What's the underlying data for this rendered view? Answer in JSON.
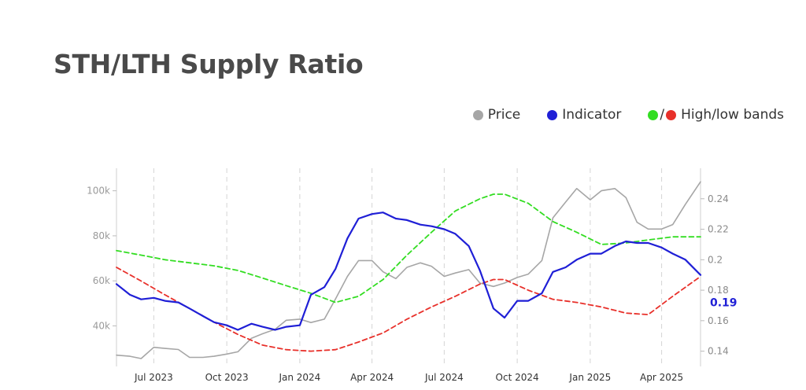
{
  "title": "STH/LTH Supply Ratio",
  "legend": {
    "price": {
      "label": "Price",
      "color": "#a6a6a6"
    },
    "indicator": {
      "label": "Indicator",
      "color": "#1f1fd6"
    },
    "bands": {
      "label": "High/low bands",
      "high_color": "#33dd22",
      "low_color": "#e8302a",
      "separator": "/"
    }
  },
  "last_value_label": "0.19",
  "chart_data": {
    "type": "line",
    "title": "STH/LTH Supply Ratio",
    "x_range": [
      "2023-05-15",
      "2025-05-20"
    ],
    "x_ticks": [
      {
        "date": "2023-07-01",
        "label": "Jul 2023"
      },
      {
        "date": "2023-10-01",
        "label": "Oct 2023"
      },
      {
        "date": "2024-01-01",
        "label": "Jan 2024"
      },
      {
        "date": "2024-04-01",
        "label": "Apr 2024"
      },
      {
        "date": "2024-07-01",
        "label": "Jul 2024"
      },
      {
        "date": "2024-10-01",
        "label": "Oct 2024"
      },
      {
        "date": "2025-01-01",
        "label": "Jan 2025"
      },
      {
        "date": "2025-04-01",
        "label": "Apr 2025"
      }
    ],
    "y_left": {
      "min": 22000,
      "max": 110000,
      "ticks": [
        40000,
        60000,
        80000,
        100000
      ],
      "tick_labels": [
        "40k",
        "60k",
        "80k",
        "100k"
      ]
    },
    "y_right": {
      "min": 0.13,
      "max": 0.26,
      "ticks": [
        0.14,
        0.16,
        0.18,
        0.2,
        0.22,
        0.24
      ],
      "tick_labels": [
        "0.14",
        "0.16",
        "0.18",
        "0.2",
        "0.22",
        "0.24"
      ]
    },
    "grid": "vertical dashed at x ticks",
    "legend_position": "top-right",
    "series": [
      {
        "name": "Price",
        "axis": "left",
        "color": "#a6a6a6",
        "x": [
          "2023-05-15",
          "2023-06-01",
          "2023-06-15",
          "2023-07-01",
          "2023-07-15",
          "2023-08-01",
          "2023-08-15",
          "2023-09-01",
          "2023-09-15",
          "2023-10-01",
          "2023-10-15",
          "2023-11-01",
          "2023-11-15",
          "2023-12-01",
          "2023-12-15",
          "2024-01-01",
          "2024-01-15",
          "2024-02-01",
          "2024-02-15",
          "2024-03-01",
          "2024-03-15",
          "2024-04-01",
          "2024-04-15",
          "2024-05-01",
          "2024-05-15",
          "2024-06-01",
          "2024-06-15",
          "2024-07-01",
          "2024-07-15",
          "2024-08-01",
          "2024-08-15",
          "2024-09-01",
          "2024-09-15",
          "2024-10-01",
          "2024-10-15",
          "2024-11-01",
          "2024-11-15",
          "2024-12-01",
          "2024-12-15",
          "2025-01-01",
          "2025-01-15",
          "2025-02-01",
          "2025-02-15",
          "2025-03-01",
          "2025-03-15",
          "2025-04-01",
          "2025-04-15",
          "2025-05-01",
          "2025-05-20"
        ],
        "y": [
          27000,
          26500,
          25500,
          30500,
          30000,
          29500,
          26000,
          26000,
          26500,
          27500,
          28500,
          34500,
          36500,
          38500,
          42500,
          43000,
          41500,
          43000,
          52000,
          62000,
          69000,
          69000,
          64000,
          61000,
          66000,
          68000,
          66500,
          62000,
          63500,
          65000,
          59000,
          57500,
          59000,
          61500,
          63000,
          69000,
          88000,
          95000,
          101000,
          96000,
          100000,
          101000,
          97000,
          86000,
          83000,
          83000,
          85000,
          94000,
          104000
        ]
      },
      {
        "name": "Indicator",
        "axis": "right",
        "color": "#1f1fd6",
        "x": [
          "2023-05-15",
          "2023-06-01",
          "2023-06-15",
          "2023-07-01",
          "2023-07-15",
          "2023-08-01",
          "2023-08-15",
          "2023-09-01",
          "2023-09-15",
          "2023-10-01",
          "2023-10-15",
          "2023-11-01",
          "2023-11-15",
          "2023-12-01",
          "2023-12-15",
          "2024-01-01",
          "2024-01-15",
          "2024-02-01",
          "2024-02-15",
          "2024-03-01",
          "2024-03-15",
          "2024-04-01",
          "2024-04-15",
          "2024-05-01",
          "2024-05-15",
          "2024-06-01",
          "2024-06-15",
          "2024-07-01",
          "2024-07-15",
          "2024-08-01",
          "2024-08-15",
          "2024-09-01",
          "2024-09-15",
          "2024-10-01",
          "2024-10-15",
          "2024-11-01",
          "2024-11-15",
          "2024-12-01",
          "2024-12-15",
          "2025-01-01",
          "2025-01-15",
          "2025-02-01",
          "2025-02-15",
          "2025-03-01",
          "2025-03-15",
          "2025-04-01",
          "2025-04-15",
          "2025-05-01",
          "2025-05-20"
        ],
        "y": [
          0.184,
          0.177,
          0.174,
          0.175,
          0.173,
          0.172,
          0.168,
          0.163,
          0.159,
          0.157,
          0.154,
          0.158,
          0.156,
          0.154,
          0.156,
          0.157,
          0.177,
          0.182,
          0.194,
          0.214,
          0.227,
          0.23,
          0.231,
          0.227,
          0.226,
          0.223,
          0.222,
          0.22,
          0.217,
          0.209,
          0.193,
          0.168,
          0.162,
          0.173,
          0.173,
          0.178,
          0.192,
          0.195,
          0.2,
          0.204,
          0.204,
          0.209,
          0.212,
          0.211,
          0.211,
          0.208,
          0.204,
          0.2,
          0.19
        ]
      },
      {
        "name": "High band",
        "axis": "right",
        "color": "#33dd22",
        "dashed": true,
        "x": [
          "2023-05-15",
          "2023-06-15",
          "2023-07-15",
          "2023-08-15",
          "2023-09-15",
          "2023-10-15",
          "2023-11-15",
          "2023-12-15",
          "2024-01-15",
          "2024-02-15",
          "2024-03-15",
          "2024-04-15",
          "2024-05-15",
          "2024-06-15",
          "2024-07-15",
          "2024-08-15",
          "2024-09-01",
          "2024-09-15",
          "2024-10-15",
          "2024-11-15",
          "2024-12-15",
          "2025-01-15",
          "2025-02-15",
          "2025-03-15",
          "2025-04-15",
          "2025-05-20"
        ],
        "y": [
          0.206,
          0.203,
          0.2,
          0.198,
          0.196,
          0.193,
          0.188,
          0.183,
          0.178,
          0.172,
          0.176,
          0.187,
          0.203,
          0.218,
          0.232,
          0.24,
          0.243,
          0.243,
          0.237,
          0.225,
          0.218,
          0.21,
          0.211,
          0.213,
          0.215,
          0.215
        ]
      },
      {
        "name": "Low band",
        "axis": "right",
        "color": "#e8302a",
        "dashed": true,
        "x": [
          "2023-05-15",
          "2023-06-15",
          "2023-07-15",
          "2023-08-15",
          "2023-09-15",
          "2023-10-15",
          "2023-11-15",
          "2023-12-15",
          "2024-01-15",
          "2024-02-15",
          "2024-03-15",
          "2024-04-15",
          "2024-05-15",
          "2024-06-15",
          "2024-07-15",
          "2024-08-15",
          "2024-09-01",
          "2024-09-15",
          "2024-10-15",
          "2024-11-15",
          "2024-12-15",
          "2025-01-15",
          "2025-02-15",
          "2025-03-15",
          "2025-04-15",
          "2025-05-20"
        ],
        "y": [
          0.195,
          0.186,
          0.177,
          0.168,
          0.159,
          0.151,
          0.144,
          0.141,
          0.14,
          0.141,
          0.146,
          0.152,
          0.161,
          0.169,
          0.176,
          0.184,
          0.187,
          0.187,
          0.18,
          0.174,
          0.172,
          0.169,
          0.165,
          0.164,
          0.176,
          0.189
        ]
      }
    ]
  }
}
